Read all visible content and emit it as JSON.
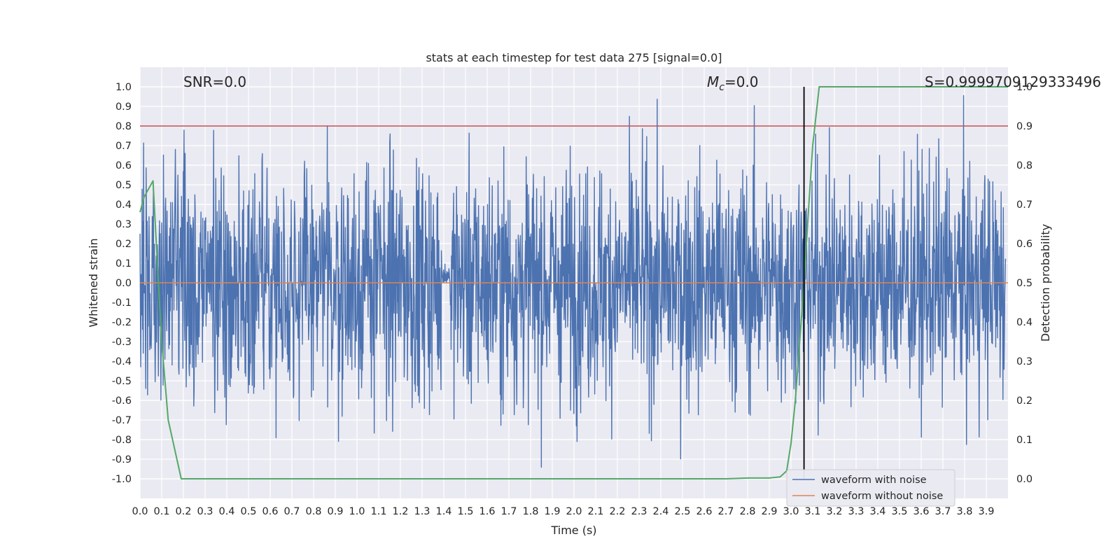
{
  "chart_data": {
    "type": "line",
    "title": "stats at each timestep for test data 275 [signal=0.0]",
    "xlabel": "Time (s)",
    "ylabel": "Whitened strain",
    "y2label": "Detection probability",
    "xlim": [
      0.0,
      4.0
    ],
    "ylim": [
      -1.1,
      1.1
    ],
    "y2lim": [
      -0.05,
      1.05
    ],
    "xticks": [
      "0.0",
      "0.1",
      "0.2",
      "0.3",
      "0.4",
      "0.5",
      "0.6",
      "0.7",
      "0.8",
      "0.9",
      "1.0",
      "1.1",
      "1.2",
      "1.3",
      "1.4",
      "1.5",
      "1.6",
      "1.7",
      "1.8",
      "1.9",
      "2.0",
      "2.1",
      "2.2",
      "2.3",
      "2.4",
      "2.5",
      "2.6",
      "2.7",
      "2.8",
      "2.9",
      "3.0",
      "3.1",
      "3.2",
      "3.3",
      "3.4",
      "3.5",
      "3.6",
      "3.7",
      "3.8",
      "3.9"
    ],
    "yticks": [
      "-1.0",
      "-0.9",
      "-0.8",
      "-0.7",
      "-0.6",
      "-0.5",
      "-0.4",
      "-0.3",
      "-0.2",
      "-0.1",
      "0.0",
      "0.1",
      "0.2",
      "0.3",
      "0.4",
      "0.5",
      "0.6",
      "0.7",
      "0.8",
      "0.9",
      "1.0"
    ],
    "y2ticks": [
      "0.0",
      "0.1",
      "0.2",
      "0.3",
      "0.4",
      "0.5",
      "0.6",
      "0.7",
      "0.8",
      "0.9",
      "1.0"
    ],
    "annotations": {
      "snr": "SNR=0.0",
      "mc_symbol": "M",
      "mc_sub": "c",
      "mc_value": "=0.0",
      "s": "S=0.9999709129333496"
    },
    "legend": {
      "position": "lower right",
      "entries": [
        "waveform with noise",
        "waveform without noise"
      ]
    },
    "series": [
      {
        "name": "waveform with noise",
        "color": "#4c72b0",
        "kind": "noise",
        "approx_amplitude": 0.3,
        "x_range": [
          0.0,
          3.99
        ],
        "note": "dense whitened noise, peaks near 0.85 and -0.97"
      },
      {
        "name": "waveform without noise",
        "color": "#dd8452",
        "y_constant": 0.0
      },
      {
        "name": "detection probability",
        "color": "#55a868",
        "axis": "right",
        "x": [
          0.0,
          0.02,
          0.06,
          0.08,
          0.1,
          0.13,
          0.19,
          0.25,
          0.3,
          1.0,
          2.0,
          2.7,
          2.8,
          2.9,
          2.95,
          2.98,
          3.0,
          3.02,
          3.04,
          3.06,
          3.08,
          3.1,
          3.13,
          3.5,
          4.0
        ],
        "y": [
          0.68,
          0.72,
          0.76,
          0.55,
          0.35,
          0.15,
          0.0,
          0.0,
          0.0,
          0.0,
          0.0,
          0.0,
          0.002,
          0.002,
          0.005,
          0.02,
          0.09,
          0.2,
          0.35,
          0.5,
          0.68,
          0.85,
          1.0,
          1.0,
          1.0
        ]
      }
    ],
    "threshold_line": {
      "value": 0.9,
      "axis": "right",
      "color": "#c44e52"
    },
    "vertical_line": {
      "x": 3.06,
      "ymin": 0.0,
      "ymax": 1.0,
      "axis": "right",
      "color": "#000000"
    }
  }
}
